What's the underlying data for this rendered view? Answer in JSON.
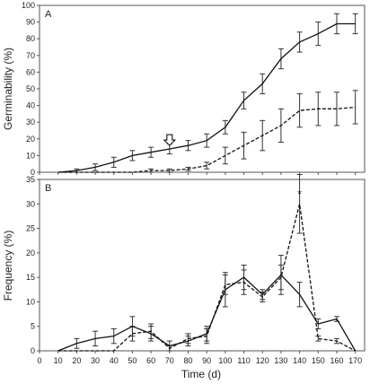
{
  "chart_data": [
    {
      "type": "line",
      "panel_label": "A",
      "ylabel": "Germinability (%)",
      "xlabel": "",
      "xlim": [
        0,
        175
      ],
      "ylim": [
        0,
        100
      ],
      "yticks": [
        0,
        10,
        20,
        30,
        40,
        50,
        60,
        70,
        80,
        90,
        100
      ],
      "grid": false,
      "annotation": {
        "type": "arrow-down",
        "x": 70,
        "y": 15
      },
      "series": [
        {
          "style": "solid",
          "x": [
            10,
            20,
            30,
            40,
            50,
            60,
            70,
            80,
            90,
            100,
            110,
            120,
            130,
            140,
            150,
            160,
            170
          ],
          "y": [
            0,
            1,
            3,
            6,
            10,
            12,
            14,
            16,
            19,
            27,
            43,
            53,
            68,
            78,
            83,
            89,
            89
          ],
          "err": [
            0,
            1,
            2,
            3,
            3,
            3,
            3,
            3,
            4,
            4,
            5,
            6,
            6,
            6,
            7,
            6,
            6
          ]
        },
        {
          "style": "dashed",
          "x": [
            10,
            20,
            30,
            40,
            50,
            60,
            70,
            80,
            90,
            100,
            110,
            120,
            130,
            140,
            150,
            160,
            170
          ],
          "y": [
            0,
            0,
            0,
            0,
            0,
            1,
            1,
            2,
            4,
            10,
            16,
            22,
            28,
            37,
            38,
            38,
            39
          ],
          "err": [
            0,
            0,
            0,
            0,
            0,
            1,
            1,
            1,
            2,
            5,
            8,
            9,
            10,
            10,
            10,
            10,
            10
          ]
        }
      ]
    },
    {
      "type": "line",
      "panel_label": "B",
      "ylabel": "Frequency  (%)",
      "xlabel": "Time (d)",
      "xlim": [
        0,
        175
      ],
      "ylim": [
        0,
        35
      ],
      "yticks": [
        0,
        5,
        10,
        15,
        20,
        25,
        30,
        35
      ],
      "xticks": [
        0,
        10,
        20,
        30,
        40,
        50,
        60,
        70,
        80,
        90,
        100,
        110,
        120,
        130,
        140,
        150,
        160,
        170
      ],
      "grid": false,
      "annotation": {
        "type": "text",
        "text": "*",
        "x": 140,
        "y": 32
      },
      "series": [
        {
          "style": "solid",
          "x": [
            10,
            20,
            30,
            40,
            50,
            60,
            70,
            80,
            90,
            100,
            110,
            120,
            130,
            140,
            150,
            160,
            170
          ],
          "y": [
            0,
            1.5,
            2.5,
            3,
            5,
            3.5,
            1,
            2,
            3.5,
            12.5,
            15,
            11.5,
            15.5,
            11.5,
            5.5,
            6.5,
            0
          ],
          "err": [
            0,
            1,
            1.5,
            1.5,
            2,
            1.5,
            1,
            1,
            1.5,
            3.5,
            2.5,
            1,
            4,
            2.5,
            1,
            0.5,
            0
          ]
        },
        {
          "style": "dashed",
          "x": [
            10,
            20,
            30,
            40,
            50,
            60,
            70,
            80,
            90,
            100,
            110,
            120,
            130,
            140,
            150,
            160,
            170
          ],
          "y": [
            0,
            0,
            0,
            0,
            3.5,
            4,
            0.5,
            2.5,
            3,
            13.5,
            14,
            11,
            15,
            30,
            2.5,
            2,
            0
          ],
          "err": [
            0,
            0,
            0,
            0,
            1.5,
            1.5,
            0.5,
            1,
            1.5,
            2,
            2.5,
            1,
            2.5,
            6,
            0.5,
            0.5,
            0
          ]
        }
      ]
    }
  ]
}
